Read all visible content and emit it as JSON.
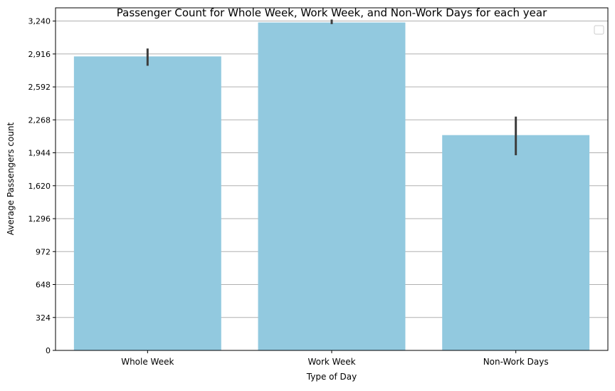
{
  "chart_data": {
    "type": "bar",
    "title": "Passenger Count for Whole Week, Work Week, and Non-Work Days for each year",
    "xlabel": "Type of Day",
    "ylabel": "Average Passengers count",
    "categories": [
      "Whole Week",
      "Work Week",
      "Non-Work Days"
    ],
    "values": [
      2892,
      3226,
      2118
    ],
    "error_low": [
      2800,
      3210,
      1920
    ],
    "error_high": [
      2970,
      3255,
      2300
    ],
    "ylim": [
      0,
      3370
    ],
    "yticks": [
      0,
      324,
      648,
      972,
      1296,
      1620,
      1944,
      2268,
      2592,
      2916,
      3240
    ],
    "ytick_labels": [
      "0",
      "324",
      "648",
      "972",
      "1,296",
      "1,620",
      "1,944",
      "2,268",
      "2,592",
      "2,916",
      "3,240"
    ],
    "grid": "y",
    "legend": "top-right (empty)",
    "colors": {
      "bar": "#92c9df",
      "errorbar": "#3d3d3d",
      "grid": "#b0b0b0",
      "axis": "#000000"
    }
  }
}
